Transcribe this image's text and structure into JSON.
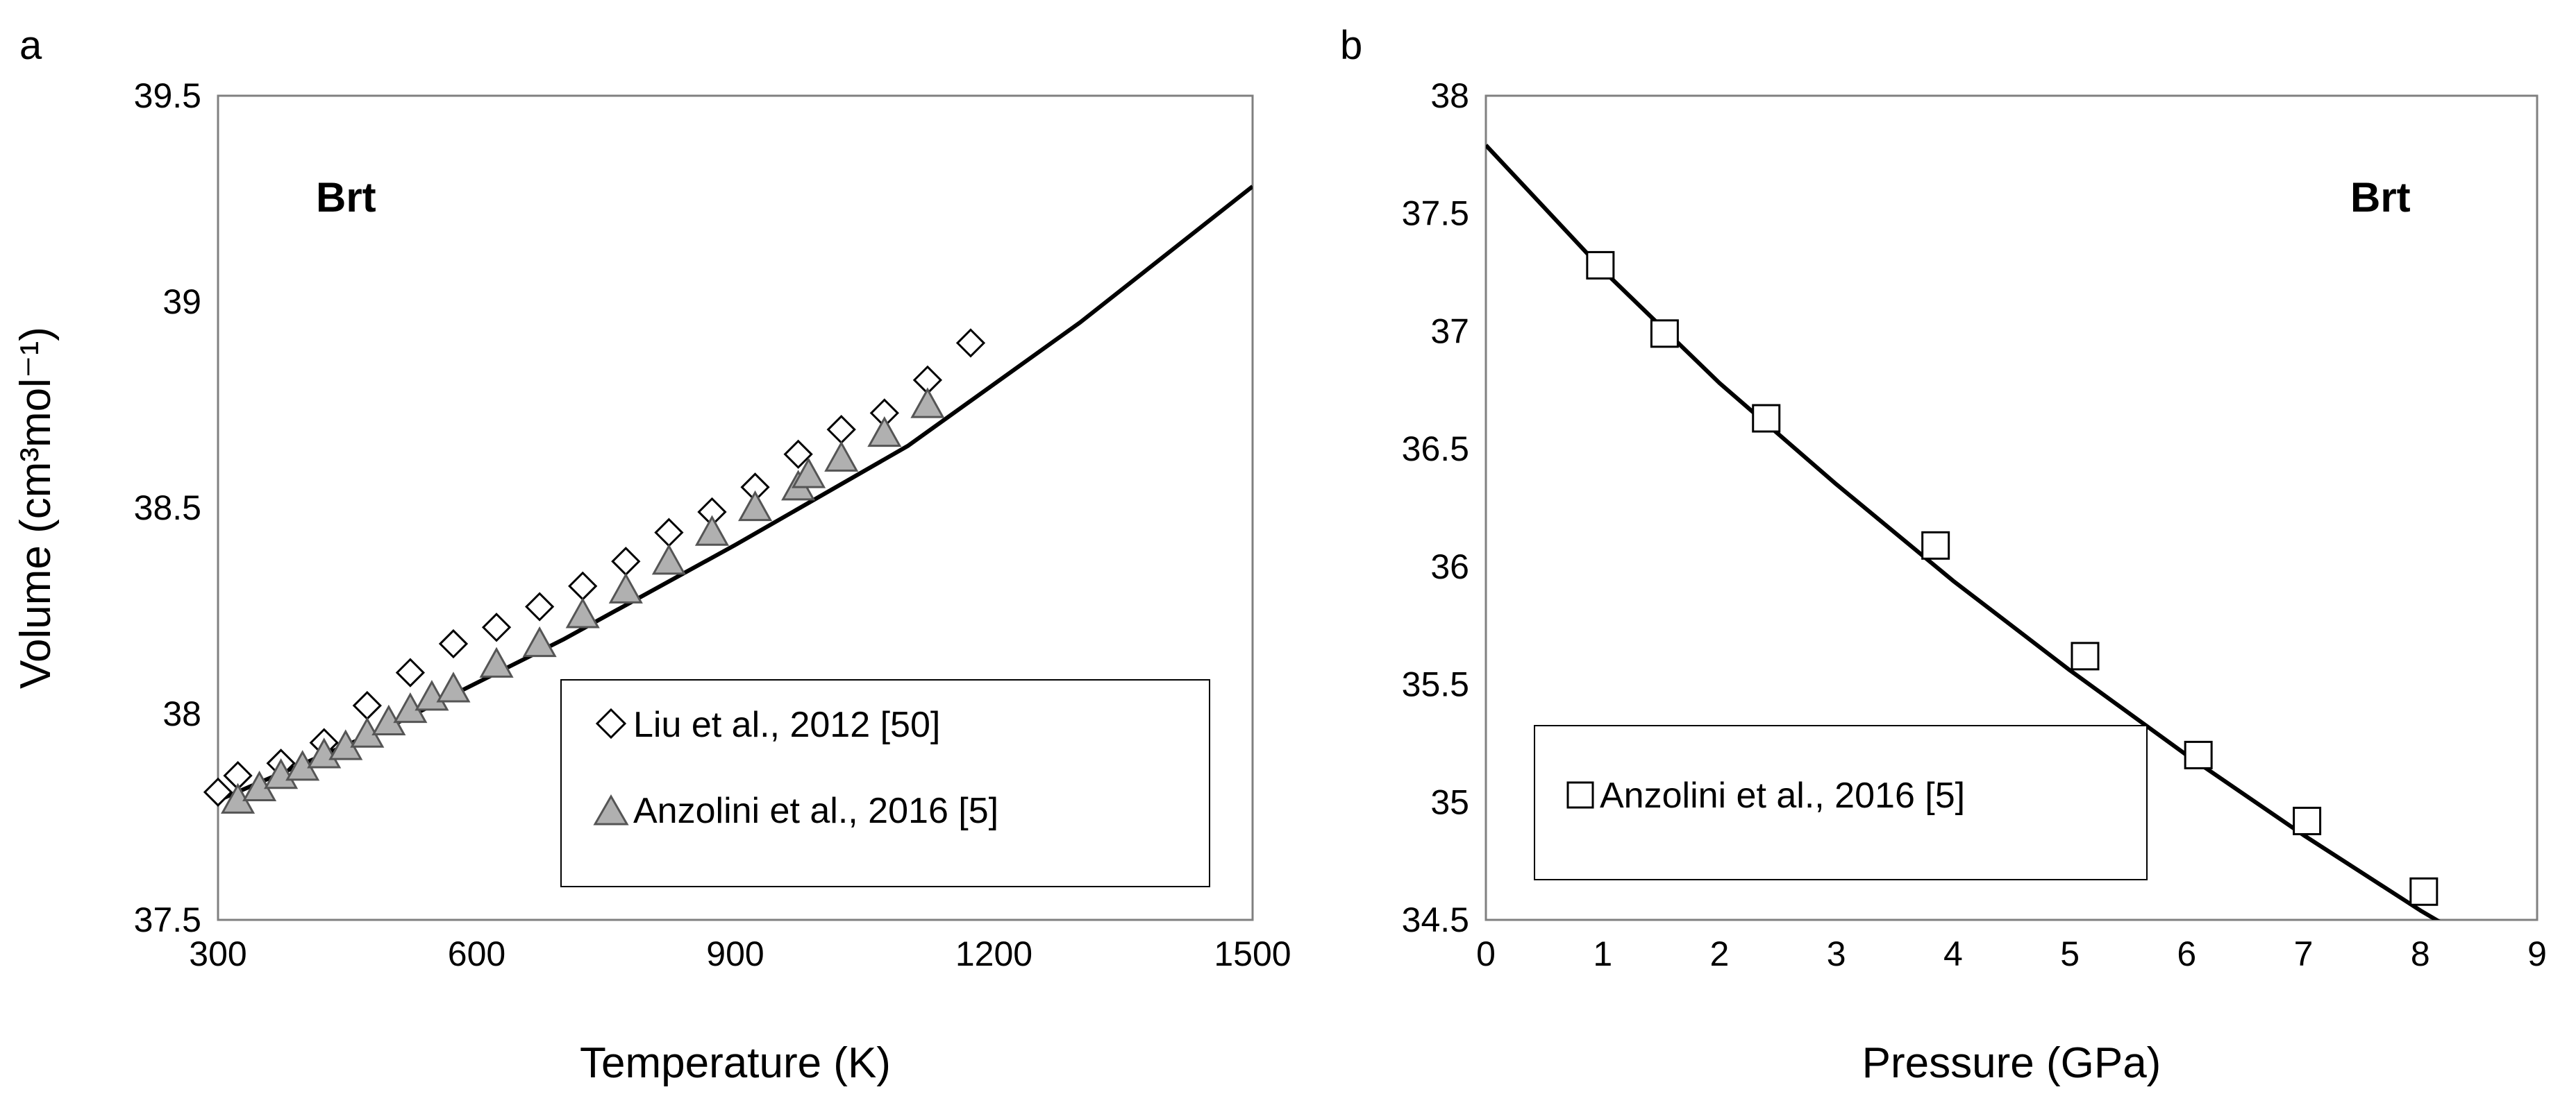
{
  "chart_data": [
    {
      "type": "scatter",
      "panel_label": "a",
      "annotation": "Brt",
      "xlabel": "Temperature (K)",
      "ylabel": "Volume (cm³mol⁻¹)",
      "xlim": [
        300,
        1500
      ],
      "ylim": [
        37.5,
        39.5
      ],
      "xticks": [
        300,
        600,
        900,
        1200,
        1500
      ],
      "yticks": [
        37.5,
        38,
        38.5,
        39,
        39.5
      ],
      "grid": false,
      "legend_position": "bottom-right",
      "series": [
        {
          "name": "Liu et al., 2012 [50]",
          "marker": "diamond",
          "color": "#ffffff",
          "x": [
            300,
            323,
            373,
            423,
            473,
            523,
            573,
            623,
            673,
            723,
            773,
            823,
            873,
            923,
            973,
            1023,
            1073,
            1123,
            1173
          ],
          "y": [
            37.81,
            37.85,
            37.88,
            37.93,
            38.02,
            38.1,
            38.17,
            38.21,
            38.26,
            38.31,
            38.37,
            38.44,
            38.49,
            38.55,
            38.63,
            38.69,
            38.73,
            38.81,
            38.9
          ]
        },
        {
          "name": "Anzolini et al., 2016 [5]",
          "marker": "triangle",
          "color": "#b0b0b0",
          "x": [
            323,
            348,
            373,
            398,
            423,
            448,
            473,
            498,
            523,
            548,
            573,
            623,
            673,
            723,
            773,
            823,
            873,
            923,
            973,
            985,
            1023,
            1073,
            1123
          ],
          "y": [
            37.79,
            37.82,
            37.85,
            37.87,
            37.9,
            37.92,
            37.95,
            37.98,
            38.01,
            38.04,
            38.06,
            38.12,
            38.17,
            38.24,
            38.3,
            38.37,
            38.44,
            38.5,
            38.55,
            38.58,
            38.62,
            38.68,
            38.75
          ]
        }
      ],
      "fit_line": {
        "x": [
          300,
          500,
          700,
          900,
          1100,
          1300,
          1500
        ],
        "y": [
          37.79,
          37.97,
          38.18,
          38.41,
          38.65,
          38.95,
          39.28
        ]
      }
    },
    {
      "type": "scatter",
      "panel_label": "b",
      "annotation": "Brt",
      "xlabel": "Pressure (GPa)",
      "ylabel": "",
      "xlim": [
        0,
        9
      ],
      "ylim": [
        34.5,
        38
      ],
      "xticks": [
        0,
        1,
        2,
        3,
        4,
        5,
        6,
        7,
        8,
        9
      ],
      "yticks": [
        34.5,
        35,
        35.5,
        36,
        36.5,
        37,
        37.5,
        38
      ],
      "grid": false,
      "legend_position": "bottom-left",
      "series": [
        {
          "name": "Anzolini et al., 2016 [5]",
          "marker": "square",
          "color": "#ffffff",
          "x": [
            0.98,
            1.53,
            2.4,
            3.85,
            5.13,
            6.1,
            7.03,
            8.03
          ],
          "y": [
            37.28,
            36.99,
            36.63,
            36.09,
            35.62,
            35.2,
            34.92,
            34.62
          ]
        }
      ],
      "fit_line": {
        "x": [
          0,
          1,
          2,
          3,
          4,
          5,
          6,
          7,
          8,
          8.65
        ],
        "y": [
          37.79,
          37.26,
          36.78,
          36.35,
          35.94,
          35.56,
          35.2,
          34.86,
          34.54,
          34.35
        ]
      }
    }
  ]
}
